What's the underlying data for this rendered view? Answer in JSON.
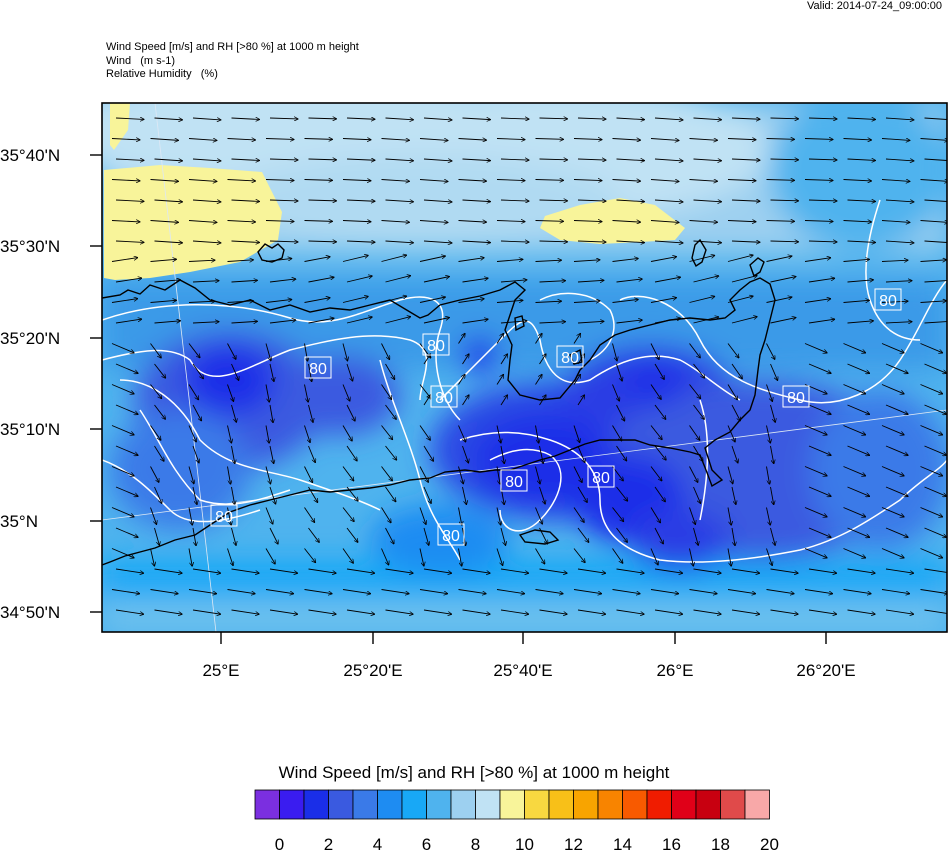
{
  "valid": "Valid: 2014-07-24_09:00:00",
  "header": {
    "line1": "Wind Speed [m/s] and RH [>80 %] at 1000 m height",
    "line2": "Wind   (m s-1)",
    "line3": "Relative Humidity   (%)"
  },
  "axes": {
    "lat_labels": [
      "35°40'N",
      "35°30'N",
      "35°20'N",
      "35°10'N",
      "35°N",
      "34°50'N"
    ],
    "lon_labels": [
      "25°E",
      "25°20'E",
      "25°40'E",
      "26°E",
      "26°20'E"
    ]
  },
  "contour_label": "80",
  "colorbar": {
    "title": "Wind Speed [m/s] and RH [>80 %] at 1000 m height",
    "labels": [
      "0",
      "2",
      "4",
      "6",
      "8",
      "10",
      "12",
      "14",
      "16",
      "18",
      "20"
    ],
    "colors": [
      "#7b2fe0",
      "#3a1cf0",
      "#1a2ee8",
      "#3a5ae0",
      "#3a7ae8",
      "#1e8cf2",
      "#18a8f6",
      "#4fb3ee",
      "#9dd0f0",
      "#c0e2f4",
      "#f8f49a",
      "#f8d840",
      "#f8c018",
      "#f8a400",
      "#f88400",
      "#f85a00",
      "#f01c00",
      "#e00018",
      "#c80010",
      "#e04a4a",
      "#f8a8a8"
    ]
  }
}
